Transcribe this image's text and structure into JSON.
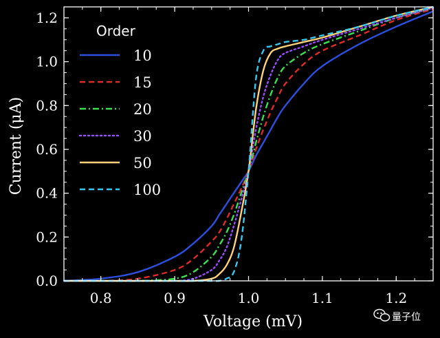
{
  "chart_data": {
    "type": "line",
    "xlabel": "Voltage (mV)",
    "ylabel": "Current (μA)",
    "xlim": [
      0.75,
      1.25
    ],
    "ylim": [
      0.0,
      1.25
    ],
    "xticks": [
      0.8,
      0.9,
      1.0,
      1.1,
      1.2
    ],
    "xtick_labels": [
      "0.8",
      "0.9",
      "1.0",
      "1.1",
      "1.2"
    ],
    "yticks": [
      0.0,
      0.2,
      0.4,
      0.6,
      0.8,
      1.0,
      1.2
    ],
    "ytick_labels": [
      "0.0",
      "0.2",
      "0.4",
      "0.6",
      "0.8",
      "1.0",
      "1.2"
    ],
    "legend": {
      "title": "Order",
      "placement": "upper-left"
    },
    "grid": false,
    "x": [
      0.75,
      0.8,
      0.85,
      0.9,
      0.925,
      0.95,
      0.96,
      0.97,
      0.98,
      0.99,
      1.0,
      1.01,
      1.02,
      1.03,
      1.04,
      1.05,
      1.075,
      1.1,
      1.15,
      1.2,
      1.25
    ],
    "series": [
      {
        "name": "10",
        "color": "#2d4fe0",
        "dash": "solid",
        "values": [
          0.0,
          0.01,
          0.04,
          0.11,
          0.17,
          0.25,
          0.3,
          0.35,
          0.4,
          0.45,
          0.5,
          0.57,
          0.63,
          0.69,
          0.75,
          0.8,
          0.9,
          0.98,
          1.08,
          1.16,
          1.23
        ]
      },
      {
        "name": "15",
        "color": "#e02a2a",
        "dash": "dashed",
        "values": [
          0.0,
          0.0,
          0.01,
          0.05,
          0.1,
          0.18,
          0.22,
          0.28,
          0.35,
          0.42,
          0.5,
          0.6,
          0.69,
          0.77,
          0.84,
          0.9,
          0.99,
          1.05,
          1.12,
          1.19,
          1.24
        ]
      },
      {
        "name": "20",
        "color": "#3ae052",
        "dash": "dashdot",
        "values": [
          0.0,
          0.0,
          0.0,
          0.01,
          0.04,
          0.11,
          0.16,
          0.22,
          0.3,
          0.4,
          0.5,
          0.63,
          0.75,
          0.85,
          0.93,
          0.98,
          1.04,
          1.08,
          1.14,
          1.2,
          1.245
        ]
      },
      {
        "name": "30",
        "color": "#9b4dff",
        "dash": "dotted",
        "values": [
          0.0,
          0.0,
          0.0,
          0.0,
          0.01,
          0.05,
          0.09,
          0.15,
          0.25,
          0.37,
          0.5,
          0.69,
          0.84,
          0.94,
          1.01,
          1.04,
          1.07,
          1.1,
          1.15,
          1.2,
          1.245
        ]
      },
      {
        "name": "50",
        "color": "#ffd27a",
        "dash": "solid",
        "values": [
          0.0,
          0.0,
          0.0,
          0.0,
          0.0,
          0.01,
          0.03,
          0.07,
          0.15,
          0.31,
          0.5,
          0.78,
          0.96,
          1.04,
          1.06,
          1.07,
          1.09,
          1.11,
          1.16,
          1.21,
          1.25
        ]
      },
      {
        "name": "100",
        "color": "#35c8f0",
        "dash": "dashed",
        "values": [
          0.0,
          0.0,
          0.0,
          0.0,
          0.0,
          0.0,
          0.0,
          0.01,
          0.04,
          0.18,
          0.5,
          0.92,
          1.05,
          1.07,
          1.08,
          1.09,
          1.1,
          1.12,
          1.16,
          1.21,
          1.25
        ]
      }
    ]
  },
  "watermark": {
    "text": "量子位",
    "icon": "wechat-icon"
  }
}
